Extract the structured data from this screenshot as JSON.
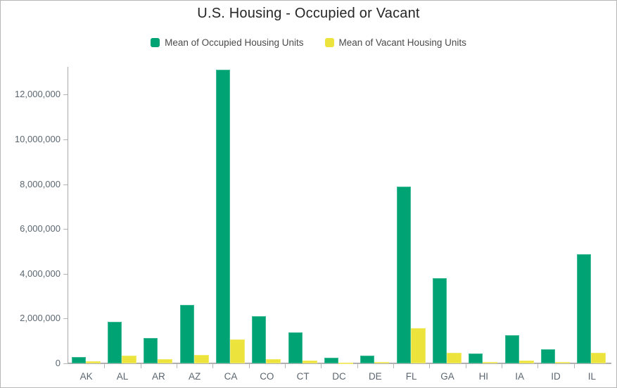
{
  "chart": {
    "title": "U.S. Housing - Occupied or Vacant"
  },
  "chart_data": {
    "type": "bar",
    "title": "U.S. Housing - Occupied or Vacant",
    "categories": [
      "AK",
      "AL",
      "AR",
      "AZ",
      "CA",
      "CO",
      "CT",
      "DC",
      "DE",
      "FL",
      "GA",
      "HI",
      "IA",
      "ID",
      "IL"
    ],
    "series": [
      {
        "name": "Mean of Occupied Housing Units",
        "color": "#00a373",
        "values": [
          270000,
          1870000,
          1140000,
          2600000,
          13100000,
          2110000,
          1370000,
          240000,
          350000,
          7900000,
          3810000,
          450000,
          1260000,
          630000,
          4870000
        ]
      },
      {
        "name": "Mean of Vacant Housing Units",
        "color": "#ece33c",
        "values": [
          85000,
          350000,
          175000,
          370000,
          1080000,
          195000,
          120000,
          30000,
          55000,
          1580000,
          480000,
          60000,
          135000,
          70000,
          460000
        ]
      }
    ],
    "xlabel": "",
    "ylabel": "",
    "ylim": [
      0,
      13300000
    ],
    "yticks": [
      0,
      2000000,
      4000000,
      6000000,
      8000000,
      10000000,
      12000000
    ],
    "ytick_labels": [
      "0",
      "2,000,000",
      "4,000,000",
      "6,000,000",
      "8,000,000",
      "10,000,000",
      "12,000,000"
    ],
    "grid": false,
    "legend_position": "top",
    "colors": {
      "axis_line": "#a9a9a9",
      "baseline": "#b0b0b0",
      "tick_label": "#5b6670",
      "legend_text": "#4a4a4a",
      "title_text": "#262626"
    }
  }
}
